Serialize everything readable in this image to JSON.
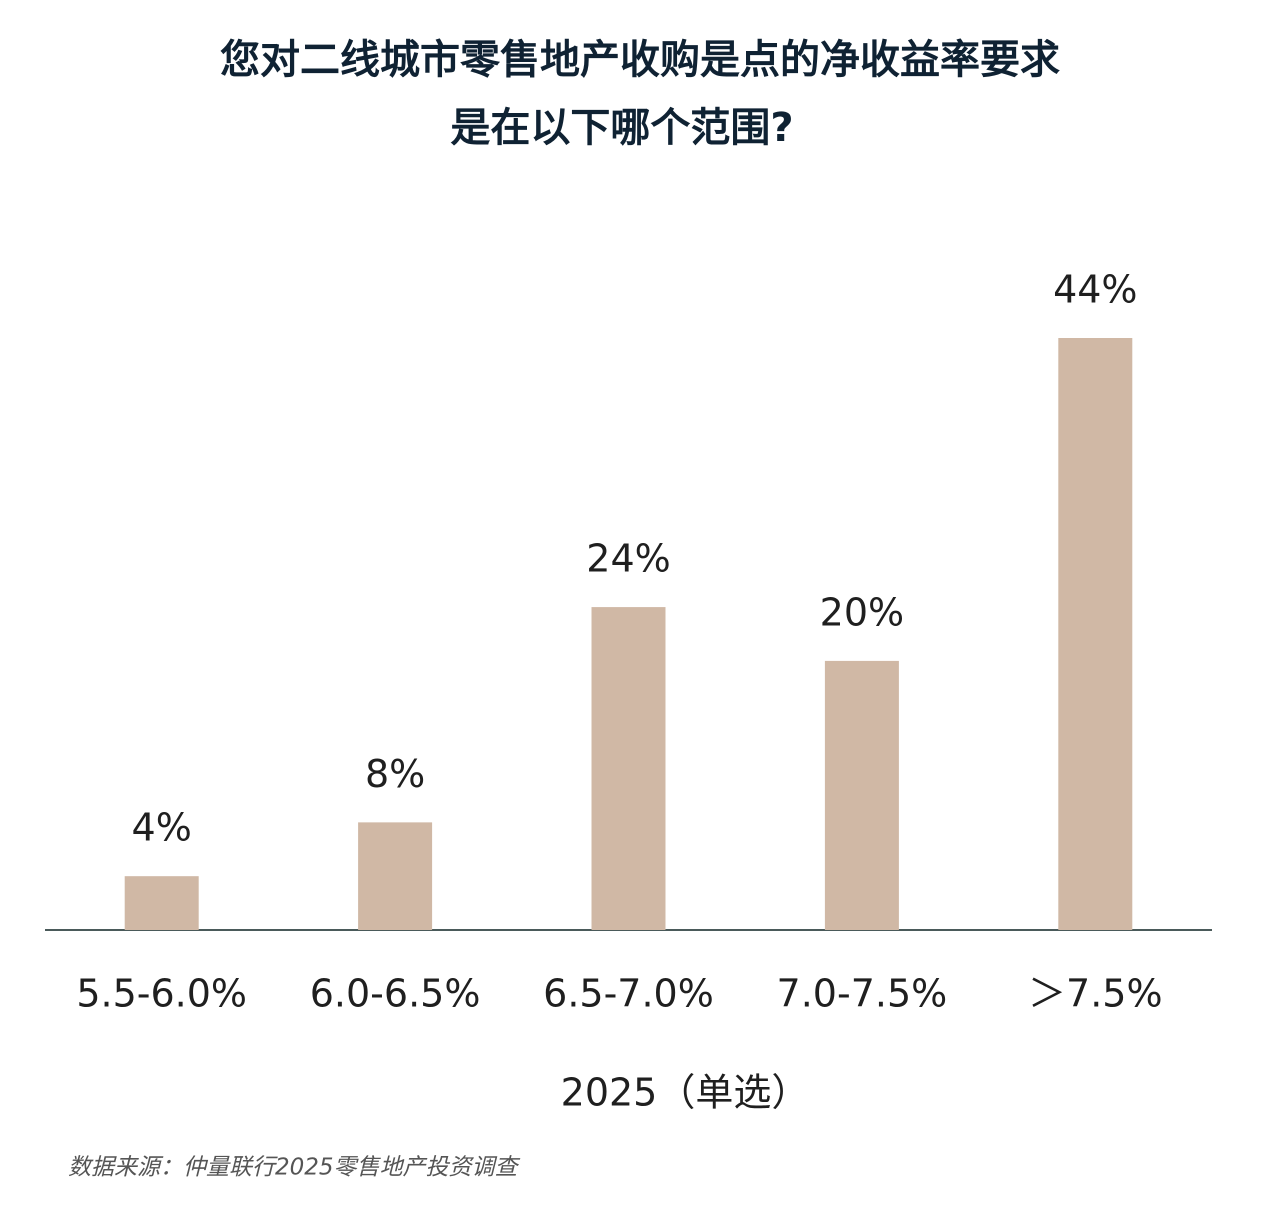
{
  "chart_data": {
    "type": "bar",
    "title": [
      "您对二线城市零售地产收购是点的净收益率要求",
      "是在以下哪个范围?"
    ],
    "categories": [
      "5.5-6.0%",
      "6.0-6.5%",
      "6.5-7.0%",
      "7.0-7.5%",
      "＞7.5%"
    ],
    "values": [
      4,
      8,
      24,
      20,
      44
    ],
    "value_labels": [
      "4%",
      "8%",
      "24%",
      "20%",
      "44%"
    ],
    "color": "#d0b8a5",
    "x_label": "2025（单选）",
    "source": "数据来源：仲量联行2025零售地产投资调查"
  }
}
